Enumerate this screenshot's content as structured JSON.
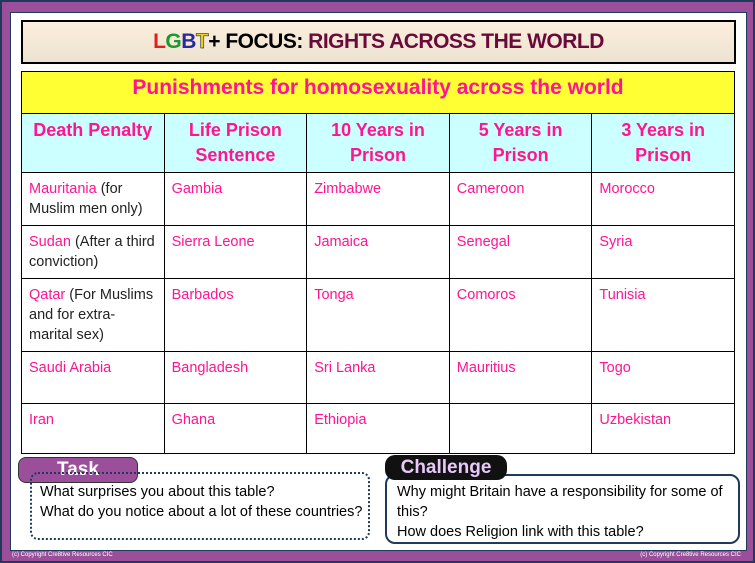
{
  "title": {
    "lgbt_l": "L",
    "lgbt_g": "G",
    "lgbt_b": "B",
    "lgbt_t": "T",
    "focus": "+ FOCUS:",
    "rest": " RIGHTS ACROSS THE WORLD"
  },
  "table": {
    "heading": "Punishments for homosexuality across the world",
    "columns": [
      "Death Penalty",
      "Life Prison Sentence",
      "10 Years in Prison",
      "5 Years in Prison",
      "3 Years in Prison"
    ],
    "rows": [
      [
        {
          "country": "Mauritania",
          "note": " (for Muslim men only)"
        },
        {
          "country": "Gambia"
        },
        {
          "country": "Zimbabwe"
        },
        {
          "country": "Cameroon"
        },
        {
          "country": "Morocco"
        }
      ],
      [
        {
          "country": "Sudan",
          "note": " (After a third conviction)"
        },
        {
          "country": "Sierra Leone"
        },
        {
          "country": "Jamaica"
        },
        {
          "country": "Senegal"
        },
        {
          "country": "Syria"
        }
      ],
      [
        {
          "country": "Qatar",
          "note": " (For Muslims and for extra-marital sex)"
        },
        {
          "country": "Barbados"
        },
        {
          "country": "Tonga"
        },
        {
          "country": "Comoros"
        },
        {
          "country": "Tunisia"
        }
      ],
      [
        {
          "country": "Saudi Arabia"
        },
        {
          "country": "Bangladesh"
        },
        {
          "country": "Sri Lanka"
        },
        {
          "country": "Mauritius"
        },
        {
          "country": "Togo"
        }
      ],
      [
        {
          "country": "Iran"
        },
        {
          "country": "Ghana"
        },
        {
          "country": "Ethiopia"
        },
        {
          "country": ""
        },
        {
          "country": "Uzbekistan"
        }
      ]
    ]
  },
  "task": {
    "label": "Task",
    "lines": [
      "What surprises you about this table?",
      "What do you notice about a lot of these countries?"
    ]
  },
  "challenge": {
    "label": "Challenge",
    "lines": [
      "Why might Britain have a responsibility for some of this?",
      "How does Religion link with this table?"
    ]
  },
  "footer": {
    "left": "(c) Copyright Cre8tive Resources CIC",
    "right": "(c) Copyright Cre8tive Resources CIC"
  },
  "colors": {
    "accent": "#ff1493",
    "header_bg": "#ffff33",
    "col_bg": "#ccffff",
    "frame": "#9b4f9b"
  }
}
